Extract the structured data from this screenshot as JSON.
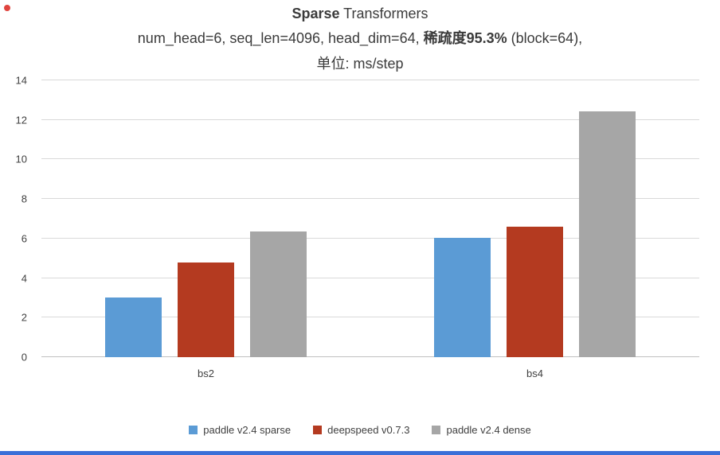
{
  "colors": {
    "background": "#ffffff",
    "grid": "#d9d9d9",
    "axis": "#bfbfbf",
    "text": "#404040",
    "bottom_strip": "#3a6fd8",
    "red_dot": "#e0443e"
  },
  "chart_data": {
    "type": "bar",
    "title_bold": "Sparse",
    "title_rest": " Transformers",
    "subtitle_prefix": "num_head=6, seq_len=4096, head_dim=64, ",
    "subtitle_bold": "稀疏度95.3%",
    "subtitle_suffix": " (block=64),",
    "unit_line": "单位: ms/step",
    "categories": [
      "bs2",
      "bs4"
    ],
    "series": [
      {
        "name": "paddle v2.4 sparse",
        "color": "#5b9bd5",
        "values": [
          3.0,
          6.05
        ]
      },
      {
        "name": "deepspeed v0.7.3",
        "color": "#b43a20",
        "values": [
          4.8,
          6.6
        ]
      },
      {
        "name": "paddle v2.4 dense",
        "color": "#a6a6a6",
        "values": [
          6.35,
          12.45
        ]
      }
    ],
    "ylim": [
      0,
      14
    ],
    "yticks": [
      0,
      2,
      4,
      6,
      8,
      10,
      12,
      14
    ],
    "grid": true,
    "legend_position": "bottom"
  }
}
